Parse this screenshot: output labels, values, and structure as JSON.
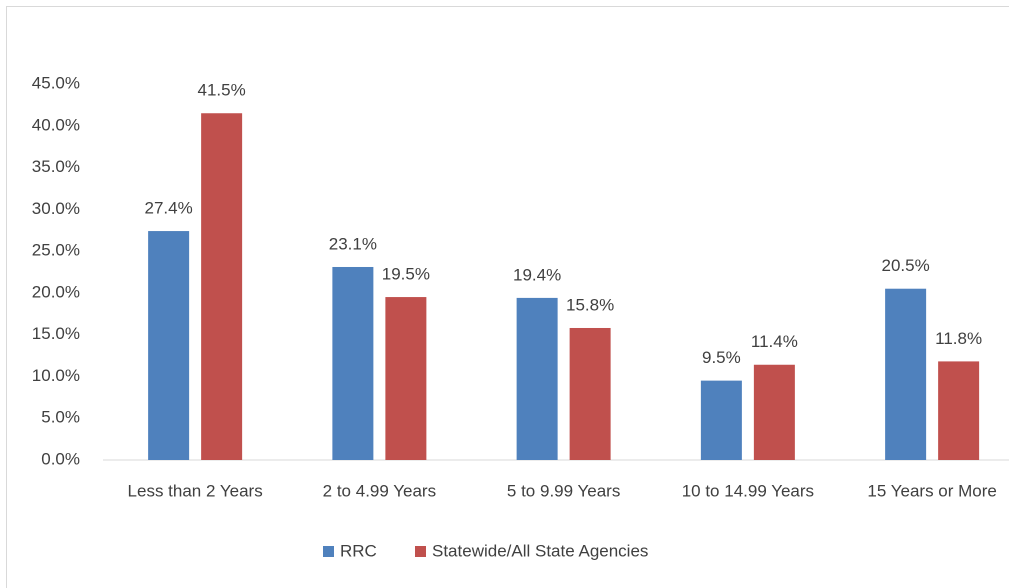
{
  "chart_data": {
    "type": "bar",
    "categories": [
      "Less than 2 Years",
      "2 to 4.99 Years",
      "5 to 9.99 Years",
      "10 to 14.99 Years",
      "15 Years or More"
    ],
    "series": [
      {
        "name": "RRC",
        "color": "#4f81bd",
        "values": [
          27.4,
          23.1,
          19.4,
          9.5,
          20.5
        ],
        "value_labels": [
          "27.4%",
          "23.1%",
          "19.4%",
          "9.5%",
          "20.5%"
        ]
      },
      {
        "name": "Statewide/All State Agencies",
        "color": "#c0504d",
        "values": [
          41.5,
          19.5,
          15.8,
          11.4,
          11.8
        ],
        "value_labels": [
          "41.5%",
          "19.5%",
          "15.8%",
          "11.4%",
          "11.8%"
        ]
      }
    ],
    "ylim": [
      0,
      45
    ],
    "yticks": [
      {
        "value": 0,
        "label": "0.0%"
      },
      {
        "value": 5,
        "label": "5.0%"
      },
      {
        "value": 10,
        "label": "10.0%"
      },
      {
        "value": 15,
        "label": "15.0%"
      },
      {
        "value": 20,
        "label": "20.0%"
      },
      {
        "value": 25,
        "label": "25.0%"
      },
      {
        "value": 30,
        "label": "30.0%"
      },
      {
        "value": 35,
        "label": "35.0%"
      },
      {
        "value": 40,
        "label": "40.0%"
      },
      {
        "value": 45,
        "label": "45.0%"
      }
    ],
    "legend": "bottom"
  }
}
